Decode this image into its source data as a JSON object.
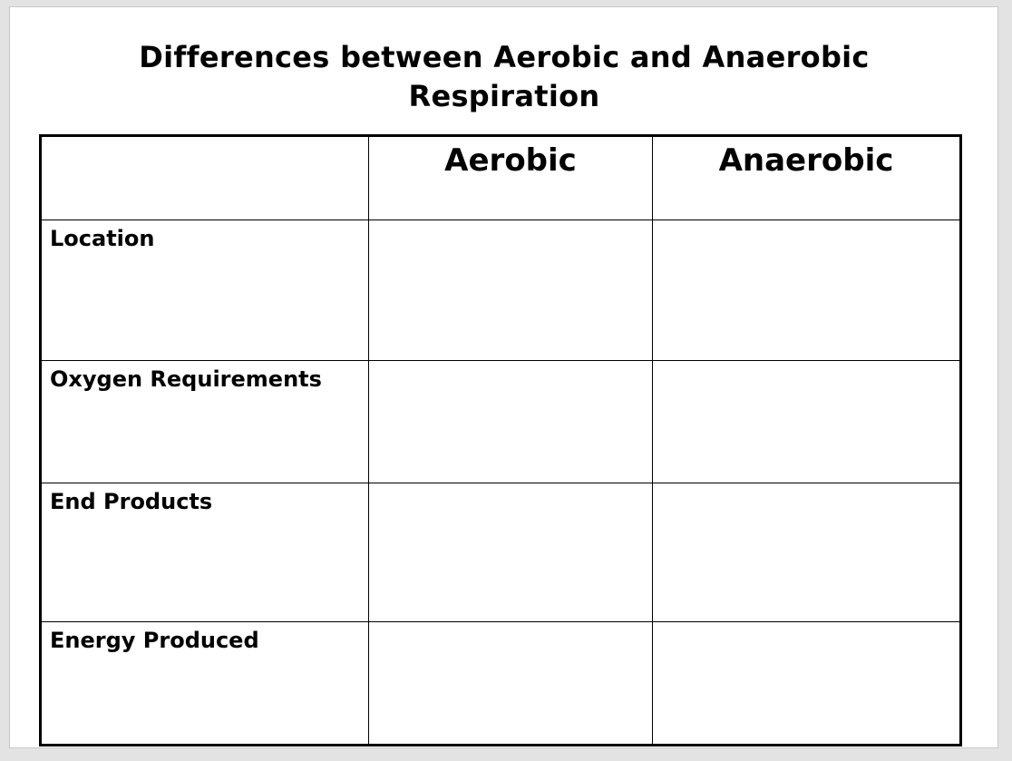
{
  "title": "Differences between Aerobic and Anaerobic Respiration",
  "table": {
    "columns": [
      "",
      "Aerobic",
      "Anaerobic"
    ],
    "rows": [
      {
        "label": "Location",
        "aerobic": "",
        "anaerobic": ""
      },
      {
        "label": "Oxygen Requirements",
        "aerobic": "",
        "anaerobic": ""
      },
      {
        "label": "End Products",
        "aerobic": "",
        "anaerobic": ""
      },
      {
        "label": "Energy Produced",
        "aerobic": "",
        "anaerobic": ""
      }
    ]
  }
}
